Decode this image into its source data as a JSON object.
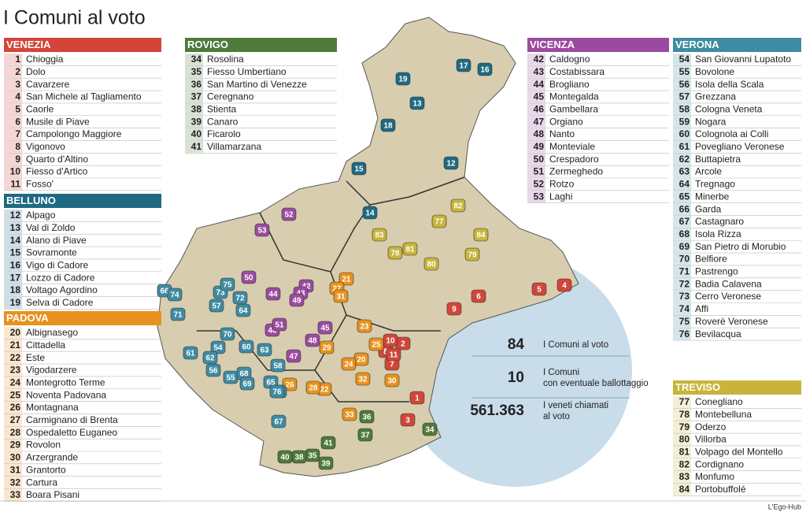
{
  "title": "I Comuni al voto",
  "provinces": [
    {
      "name": "VENEZIA",
      "color": "#d2463a",
      "items": [
        [
          1,
          "Chioggia"
        ],
        [
          2,
          "Dolo"
        ],
        [
          3,
          "Cavarzere"
        ],
        [
          4,
          "San Michele al Tagliamento"
        ],
        [
          5,
          "Caorle"
        ],
        [
          6,
          "Musile di Piave"
        ],
        [
          7,
          "Campolongo Maggiore"
        ],
        [
          8,
          "Vigonovo"
        ],
        [
          9,
          "Quarto d'Altino"
        ],
        [
          10,
          "Fiesso d'Artico"
        ],
        [
          11,
          "Fosso'"
        ]
      ]
    },
    {
      "name": "BELLUNO",
      "color": "#1f6a82",
      "items": [
        [
          12,
          "Alpago"
        ],
        [
          13,
          "Val di Zoldo"
        ],
        [
          14,
          "Alano di Piave"
        ],
        [
          15,
          "Sovramonte"
        ],
        [
          16,
          "Vigo di Cadore"
        ],
        [
          17,
          "Lozzo di Cadore"
        ],
        [
          18,
          "Voltago Agordino"
        ],
        [
          19,
          "Selva di Cadore"
        ]
      ]
    },
    {
      "name": "PADOVA",
      "color": "#e8921e",
      "items": [
        [
          20,
          "Albignasego"
        ],
        [
          21,
          "Cittadella"
        ],
        [
          22,
          "Este"
        ],
        [
          23,
          "Vigodarzere"
        ],
        [
          24,
          "Montegrotto Terme"
        ],
        [
          25,
          "Noventa Padovana"
        ],
        [
          26,
          "Montagnana"
        ],
        [
          27,
          "Carmignano di Brenta"
        ],
        [
          28,
          "Ospedaletto Euganeo"
        ],
        [
          29,
          "Rovolon"
        ],
        [
          30,
          "Arzergrande"
        ],
        [
          31,
          "Grantorto"
        ],
        [
          32,
          "Cartura"
        ],
        [
          33,
          "Boara Pisani"
        ]
      ]
    },
    {
      "name": "ROVIGO",
      "color": "#4e7a3a",
      "items": [
        [
          34,
          "Rosolina"
        ],
        [
          35,
          "Fiesso Umbertiano"
        ],
        [
          36,
          "San Martino di Venezze"
        ],
        [
          37,
          "Ceregnano"
        ],
        [
          38,
          "Stienta"
        ],
        [
          39,
          "Canaro"
        ],
        [
          40,
          "Ficarolo"
        ],
        [
          41,
          "Villamarzana"
        ]
      ]
    },
    {
      "name": "VICENZA",
      "color": "#9a4b9f",
      "items": [
        [
          42,
          "Caldogno"
        ],
        [
          43,
          "Costabissara"
        ],
        [
          44,
          "Brogliano"
        ],
        [
          45,
          "Montegalda"
        ],
        [
          46,
          "Gambellara"
        ],
        [
          47,
          "Orgiano"
        ],
        [
          48,
          "Nanto"
        ],
        [
          49,
          "Monteviale"
        ],
        [
          50,
          "Crespadoro"
        ],
        [
          51,
          "Zermeghedo"
        ],
        [
          52,
          "Rotzo"
        ],
        [
          53,
          "Laghi"
        ]
      ]
    },
    {
      "name": "VERONA",
      "color": "#3f8ba1",
      "items": [
        [
          54,
          "San Giovanni Lupatoto"
        ],
        [
          55,
          "Bovolone"
        ],
        [
          56,
          "Isola della Scala"
        ],
        [
          57,
          "Grezzana"
        ],
        [
          58,
          "Cologna Veneta"
        ],
        [
          59,
          "Nogara"
        ],
        [
          60,
          "Colognola ai Colli"
        ],
        [
          61,
          "Povegliano Veronese"
        ],
        [
          62,
          "Buttapietra"
        ],
        [
          63,
          "Arcole"
        ],
        [
          64,
          "Tregnago"
        ],
        [
          65,
          "Minerbe"
        ],
        [
          66,
          "Garda"
        ],
        [
          67,
          "Castagnaro"
        ],
        [
          68,
          "Isola Rizza"
        ],
        [
          69,
          "San Pietro di Morubio"
        ],
        [
          70,
          "Belfiore"
        ],
        [
          71,
          "Pastrengo"
        ],
        [
          72,
          "Badia Calavena"
        ],
        [
          73,
          "Cerro Veronese"
        ],
        [
          74,
          "Affi"
        ],
        [
          75,
          "Roverè Veronese"
        ],
        [
          76,
          "Bevilacqua"
        ]
      ]
    },
    {
      "name": "TREVISO",
      "color": "#c8b43a",
      "items": [
        [
          77,
          "Conegliano"
        ],
        [
          78,
          "Montebelluna"
        ],
        [
          79,
          "Oderzo"
        ],
        [
          80,
          "Villorba"
        ],
        [
          81,
          "Volpago del Montello"
        ],
        [
          82,
          "Cordignano"
        ],
        [
          83,
          "Monfumo"
        ],
        [
          84,
          "Portobuffolé"
        ]
      ]
    }
  ],
  "stats": [
    {
      "value": "84",
      "label_lines": [
        "I Comuni al voto"
      ]
    },
    {
      "value": "10",
      "label_lines": [
        "I Comuni",
        "con eventuale ballottaggio"
      ]
    },
    {
      "value": "561.363",
      "label_lines": [
        "I veneti chiamati",
        "al voto"
      ]
    }
  ],
  "credit": "L'Ego-Hub"
}
